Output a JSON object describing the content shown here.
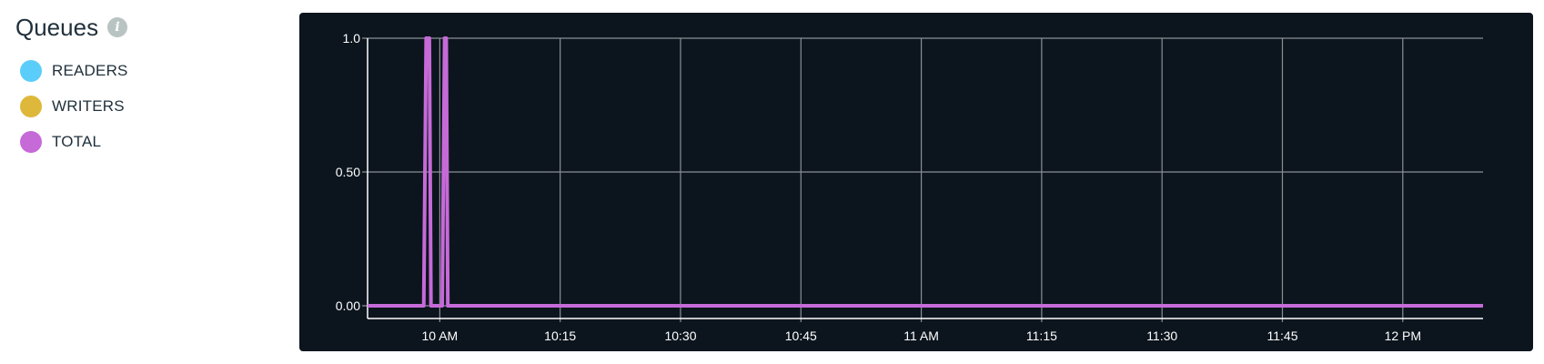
{
  "header": {
    "title": "Queues",
    "info_icon": "info-icon"
  },
  "legend": [
    {
      "label": "READERS",
      "color": "#5bcdfa"
    },
    {
      "label": "WRITERS",
      "color": "#deb83a"
    },
    {
      "label": "TOTAL",
      "color": "#c66ad8"
    }
  ],
  "chart_data": {
    "type": "line",
    "title": "",
    "xlabel": "",
    "ylabel": "",
    "ylim": [
      0,
      1
    ],
    "grid": true,
    "background": "#0c151e",
    "y_ticks": [
      "0.00",
      "0.50",
      "1.0"
    ],
    "y_tick_values": [
      0,
      0.5,
      1.0
    ],
    "x_ticks": [
      "10 AM",
      "10:15",
      "10:30",
      "10:45",
      "11 AM",
      "11:15",
      "11:30",
      "11:45",
      "12 PM"
    ],
    "x_tick_values": [
      "10:00",
      "10:15",
      "10:30",
      "10:45",
      "11:00",
      "11:15",
      "11:30",
      "11:45",
      "12:00"
    ],
    "xlim": [
      "09:51",
      "12:10"
    ],
    "series": [
      {
        "name": "TOTAL",
        "color": "#c66ad8",
        "points": [
          [
            "09:51",
            0
          ],
          [
            "09:58",
            0
          ],
          [
            "09:58.3",
            1
          ],
          [
            "09:58.7",
            1
          ],
          [
            "09:58.9",
            0
          ],
          [
            "10:00.3",
            0
          ],
          [
            "10:00.6",
            1
          ],
          [
            "10:00.8",
            1
          ],
          [
            "10:01",
            0
          ],
          [
            "12:10",
            0
          ]
        ]
      }
    ]
  }
}
